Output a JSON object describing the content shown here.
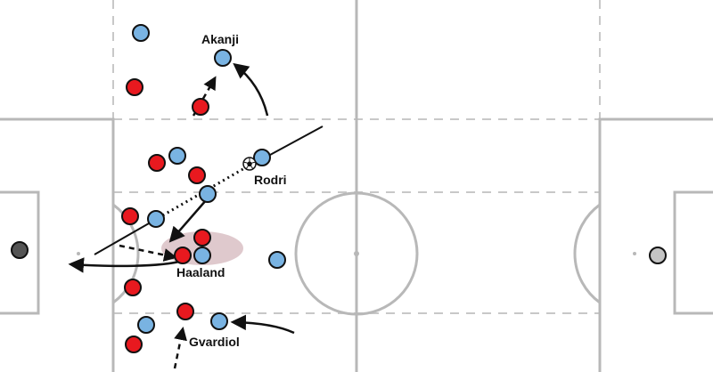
{
  "colors": {
    "pitch_background": "#ffffff",
    "pitch_lines": "#b8b8b8",
    "zone_lines": "#c8c8c8",
    "red_team": "#e8191f",
    "blue_team": "#79b3e2",
    "highlight_zone": "#d9bfc4",
    "goalkeeper_left": "#555555",
    "goalkeeper_right": "#c4c4c4",
    "arrows": "#111111"
  },
  "labels": {
    "akanji": "Akanji",
    "rodri": "Rodri",
    "haaland": "Haaland",
    "gvardiol": "Gvardiol"
  },
  "icons": {
    "ball": "football-icon"
  }
}
